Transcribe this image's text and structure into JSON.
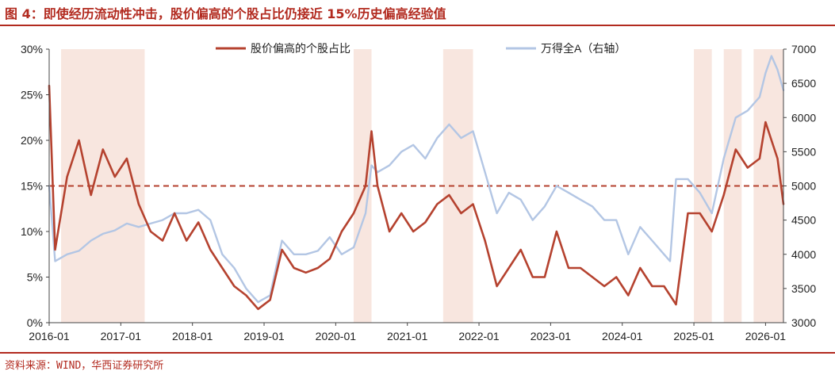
{
  "title": "图 4：即使经历流动性冲击，股价偏高的个股占比仍接近 15%历史偏高经验值",
  "source": "资料来源：WIND，华西证券研究所",
  "colors": {
    "accent": "#b22a1f",
    "series_primary": "#b5422f",
    "series_secondary": "#b3c6e4",
    "shade": "#f8e6df",
    "reference_line": "#b5422f"
  },
  "chart_data": {
    "type": "line",
    "legend_placement": "top",
    "grid": false,
    "x_range": [
      "2016-01",
      "2026-04"
    ],
    "x_tick_labels": [
      "2016-01",
      "2017-01",
      "2018-01",
      "2019-01",
      "2020-01",
      "2021-01",
      "2022-01",
      "2023-01",
      "2024-01",
      "2025-01",
      "2026-01"
    ],
    "y_left": {
      "range": [
        0,
        30
      ],
      "tick_labels": [
        "0%",
        "5%",
        "10%",
        "15%",
        "20%",
        "25%",
        "30%"
      ]
    },
    "y_right": {
      "range": [
        3000,
        7000
      ],
      "tick_labels": [
        "3000",
        "3500",
        "4000",
        "4500",
        "5000",
        "5500",
        "6000",
        "6500",
        "7000"
      ]
    },
    "reference_line": {
      "axis": "left",
      "value": 15
    },
    "shaded_periods": [
      [
        "2016-03",
        "2017-05"
      ],
      [
        "2020-04",
        "2020-07"
      ],
      [
        "2021-07",
        "2021-12"
      ],
      [
        "2025-01",
        "2025-04"
      ],
      [
        "2025-06",
        "2025-09"
      ],
      [
        "2025-11",
        "2026-04"
      ]
    ],
    "series": [
      {
        "name": "股价偏高的个股占比",
        "axis": "left",
        "x": [
          "2016-01",
          "2016-02",
          "2016-04",
          "2016-06",
          "2016-08",
          "2016-10",
          "2016-12",
          "2017-02",
          "2017-04",
          "2017-06",
          "2017-08",
          "2017-10",
          "2017-12",
          "2018-02",
          "2018-04",
          "2018-06",
          "2018-08",
          "2018-10",
          "2018-12",
          "2019-02",
          "2019-04",
          "2019-06",
          "2019-08",
          "2019-10",
          "2019-12",
          "2020-02",
          "2020-04",
          "2020-06",
          "2020-07",
          "2020-08",
          "2020-10",
          "2020-12",
          "2021-02",
          "2021-04",
          "2021-06",
          "2021-08",
          "2021-10",
          "2021-12",
          "2022-02",
          "2022-04",
          "2022-06",
          "2022-08",
          "2022-10",
          "2022-12",
          "2023-02",
          "2023-04",
          "2023-06",
          "2023-08",
          "2023-10",
          "2023-12",
          "2024-02",
          "2024-04",
          "2024-06",
          "2024-08",
          "2024-09",
          "2024-10",
          "2024-12",
          "2025-02",
          "2025-04",
          "2025-06",
          "2025-08",
          "2025-10",
          "2025-12",
          "2026-01",
          "2026-02",
          "2026-03",
          "2026-04"
        ],
        "values": [
          26,
          8,
          16,
          20,
          14,
          19,
          16,
          18,
          13,
          10,
          9,
          12,
          9,
          11,
          8,
          6,
          4,
          3,
          1.5,
          2.5,
          8,
          6,
          5.5,
          6,
          7,
          10,
          12,
          15,
          21,
          15,
          10,
          12,
          10,
          11,
          13,
          14,
          12,
          13,
          9,
          4,
          6,
          8,
          5,
          5,
          10,
          6,
          6,
          5,
          4,
          5,
          3,
          6,
          4,
          4,
          3,
          2,
          12,
          12,
          10,
          14,
          19,
          17,
          18,
          22,
          20,
          18,
          13
        ]
      },
      {
        "name": "万得全A（右轴）",
        "axis": "right",
        "x": [
          "2016-01",
          "2016-02",
          "2016-04",
          "2016-06",
          "2016-08",
          "2016-10",
          "2016-12",
          "2017-02",
          "2017-04",
          "2017-06",
          "2017-08",
          "2017-10",
          "2017-12",
          "2018-02",
          "2018-04",
          "2018-06",
          "2018-08",
          "2018-10",
          "2018-12",
          "2019-02",
          "2019-04",
          "2019-06",
          "2019-08",
          "2019-10",
          "2019-12",
          "2020-02",
          "2020-04",
          "2020-06",
          "2020-07",
          "2020-08",
          "2020-10",
          "2020-12",
          "2021-02",
          "2021-04",
          "2021-06",
          "2021-08",
          "2021-10",
          "2021-12",
          "2022-02",
          "2022-04",
          "2022-06",
          "2022-08",
          "2022-10",
          "2022-12",
          "2023-02",
          "2023-04",
          "2023-06",
          "2023-08",
          "2023-10",
          "2023-12",
          "2024-02",
          "2024-04",
          "2024-06",
          "2024-08",
          "2024-09",
          "2024-10",
          "2024-12",
          "2025-02",
          "2025-04",
          "2025-06",
          "2025-08",
          "2025-10",
          "2025-12",
          "2026-01",
          "2026-02",
          "2026-03",
          "2026-04"
        ],
        "values": [
          5000,
          3900,
          4000,
          4050,
          4200,
          4300,
          4350,
          4450,
          4400,
          4450,
          4500,
          4600,
          4600,
          4650,
          4500,
          4000,
          3800,
          3500,
          3300,
          3400,
          4200,
          4000,
          4000,
          4050,
          4250,
          4000,
          4100,
          4600,
          5300,
          5200,
          5300,
          5500,
          5600,
          5400,
          5700,
          5900,
          5700,
          5800,
          5200,
          4600,
          4900,
          4800,
          4500,
          4700,
          5000,
          4900,
          4800,
          4700,
          4500,
          4500,
          4000,
          4400,
          4200,
          4000,
          3900,
          5100,
          5100,
          4900,
          4600,
          5400,
          6000,
          6100,
          6300,
          6650,
          6900,
          6700,
          6400
        ]
      }
    ]
  }
}
